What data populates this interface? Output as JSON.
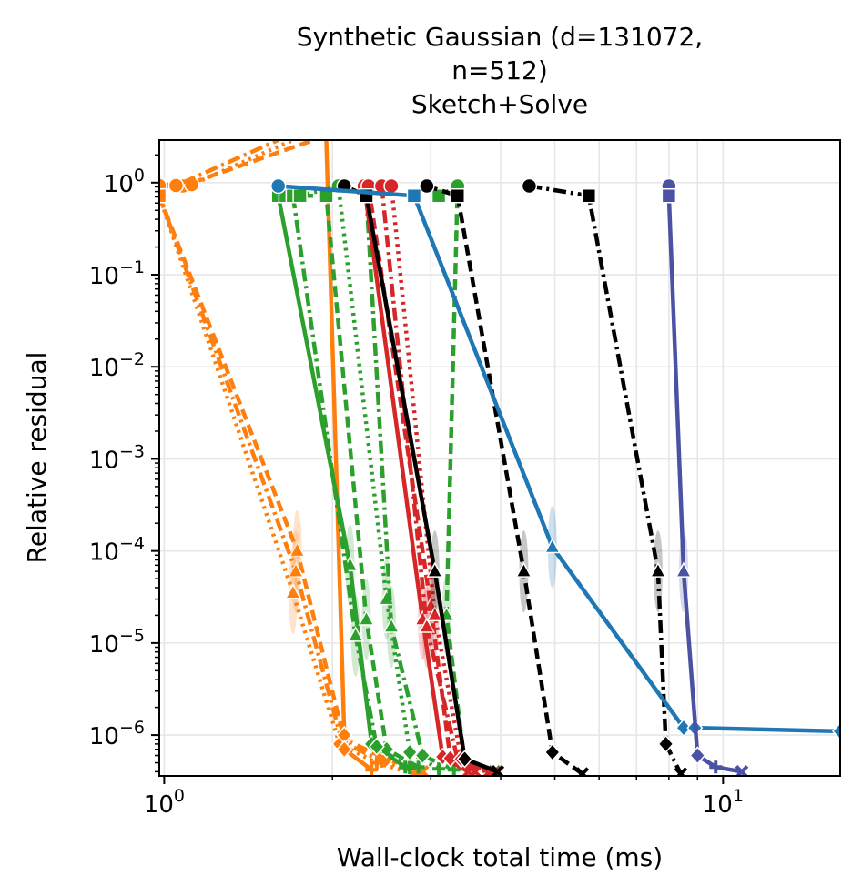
{
  "chart_data": {
    "type": "line",
    "title": [
      "Synthetic Gaussian (d=131072,",
      "n=512)",
      "Sketch+Solve"
    ],
    "xlabel": "Wall-clock total time (ms)",
    "ylabel": "Relative residual",
    "xscale": "log",
    "yscale": "log",
    "xlim": [
      0.98,
      16.2
    ],
    "ylim": [
      3.6e-07,
      2.9
    ],
    "grid": true,
    "legend": "none",
    "x_ticks": [
      {
        "value": 1,
        "base": "10",
        "exp": "0"
      },
      {
        "value": 10,
        "base": "10",
        "exp": "1"
      }
    ],
    "y_ticks": [
      {
        "value": 1,
        "base": "10",
        "exp": "0"
      },
      {
        "value": 0.1,
        "base": "10",
        "exp": "−1"
      },
      {
        "value": 0.01,
        "base": "10",
        "exp": "−2"
      },
      {
        "value": 0.001,
        "base": "10",
        "exp": "−3"
      },
      {
        "value": 0.0001,
        "base": "10",
        "exp": "−4"
      },
      {
        "value": 1e-05,
        "base": "10",
        "exp": "−5"
      },
      {
        "value": 1e-06,
        "base": "10",
        "exp": "−6"
      }
    ],
    "series": [
      {
        "color": "#ff7f0e",
        "dash": "12,6",
        "x": [
          0.98,
          1.08,
          1.85
        ],
        "y": [
          0.92,
          0.92,
          2.9
        ]
      },
      {
        "color": "#ff7f0e",
        "dash": "3,5",
        "x": [
          0.98,
          1.12,
          1.7
        ],
        "y": [
          0.95,
          0.95,
          2.9
        ]
      },
      {
        "color": "#ff7f0e",
        "dash": "14,5,3,5",
        "x": [
          0.98,
          1.05,
          1.6
        ],
        "y": [
          0.93,
          0.93,
          2.9
        ]
      },
      {
        "color": "#ff7f0e",
        "dash": "12,6",
        "x": [
          0.98,
          1.73,
          2.1,
          2.5,
          2.9
        ],
        "y": [
          0.72,
          0.0001,
          9e-07,
          5.5e-07,
          4e-07
        ]
      },
      {
        "color": "#ff7f0e",
        "dash": "14,5,3,5",
        "x": [
          0.98,
          1.72,
          2.08,
          2.45,
          2.85
        ],
        "y": [
          0.72,
          6e-05,
          8.5e-07,
          5.2e-07,
          3.9e-07
        ]
      },
      {
        "color": "#ff7f0e",
        "dash": "3,5",
        "x": [
          0.98,
          1.7,
          2.06,
          2.4,
          2.8
        ],
        "y": [
          0.72,
          3.5e-05,
          8e-07,
          5e-07,
          3.8e-07
        ]
      },
      {
        "color": "#ff7f0e",
        "dash": "",
        "x": [
          1.95,
          2.1,
          2.1,
          2.35
        ],
        "y": [
          2.9,
          1e-06,
          7e-07,
          4.2e-07
        ]
      },
      {
        "color": "#2ca02c",
        "dash": "",
        "x": [
          1.6,
          2.15,
          2.35,
          2.7
        ],
        "y": [
          0.72,
          7e-05,
          8e-07,
          4.5e-07
        ]
      },
      {
        "color": "#2ca02c",
        "dash": "12,6",
        "x": [
          1.65,
          1.95,
          2.3,
          2.5,
          2.85
        ],
        "y": [
          0.72,
          0.72,
          1.8e-05,
          7e-07,
          4.5e-07
        ]
      },
      {
        "color": "#2ca02c",
        "dash": "14,5,3,5",
        "x": [
          1.7,
          2.2,
          2.4,
          2.75
        ],
        "y": [
          0.72,
          1.2e-05,
          7.5e-07,
          4.4e-07
        ]
      },
      {
        "color": "#2ca02c",
        "dash": "3,5",
        "x": [
          1.75,
          2.05,
          2.5,
          2.75,
          3.1
        ],
        "y": [
          0.72,
          0.92,
          3e-05,
          6.5e-07,
          4.3e-07
        ]
      },
      {
        "color": "#2ca02c",
        "dash": "14,5,3,5",
        "x": [
          2.3,
          2.55,
          2.9,
          3.3
        ],
        "y": [
          0.72,
          1.5e-05,
          6e-07,
          4.2e-07
        ]
      },
      {
        "color": "#2ca02c",
        "dash": "12,6",
        "x": [
          3.1,
          3.35,
          3.2,
          3.45,
          3.9
        ],
        "y": [
          0.72,
          0.92,
          2e-05,
          5e-07,
          4e-07
        ]
      },
      {
        "color": "#d62728",
        "dash": "",
        "x": [
          2.28,
          2.9,
          3.15,
          3.5
        ],
        "y": [
          0.92,
          1.8e-05,
          5.8e-07,
          4e-07
        ]
      },
      {
        "color": "#d62728",
        "dash": "12,6",
        "x": [
          2.32,
          3.0,
          3.25,
          3.6
        ],
        "y": [
          0.92,
          2.5e-05,
          5.6e-07,
          4e-07
        ]
      },
      {
        "color": "#d62728",
        "dash": "14,5,3,5",
        "x": [
          2.45,
          2.95,
          3.35,
          3.8
        ],
        "y": [
          0.92,
          1.5e-05,
          5.4e-07,
          3.9e-07
        ]
      },
      {
        "color": "#d62728",
        "dash": "3,5",
        "x": [
          2.55,
          3.05,
          3.4,
          3.9
        ],
        "y": [
          0.92,
          2e-05,
          5.5e-07,
          3.9e-07
        ]
      },
      {
        "color": "#000000",
        "dash": "",
        "x": [
          2.1,
          2.3,
          3.05,
          3.45,
          3.95
        ],
        "y": [
          0.92,
          0.72,
          6e-05,
          5.5e-07,
          4e-07
        ]
      },
      {
        "color": "#000000",
        "dash": "12,6",
        "x": [
          2.95,
          3.35,
          3.35,
          4.4,
          4.95,
          5.6
        ],
        "y": [
          0.92,
          0.72,
          0.72,
          6e-05,
          6.5e-07,
          3.8e-07
        ]
      },
      {
        "color": "#000000",
        "dash": "14,5,3,5",
        "x": [
          4.5,
          5.75,
          7.65,
          7.9,
          8.4
        ],
        "y": [
          0.92,
          0.72,
          6e-05,
          8e-07,
          3.8e-07
        ]
      },
      {
        "color": "#1f77b4",
        "dash": "",
        "x": [
          1.6,
          2.8,
          4.95,
          8.5,
          8.9,
          16.2
        ],
        "y": [
          0.92,
          0.72,
          0.00011,
          1.2e-06,
          1.2e-06,
          1.1e-06
        ]
      },
      {
        "color": "#4c52a3",
        "dash": "",
        "x": [
          8.0,
          8.0,
          8.5,
          9.0,
          9.7,
          10.8
        ],
        "y": [
          0.92,
          0.72,
          6e-05,
          6e-07,
          4.5e-07,
          4e-07
        ]
      }
    ]
  }
}
